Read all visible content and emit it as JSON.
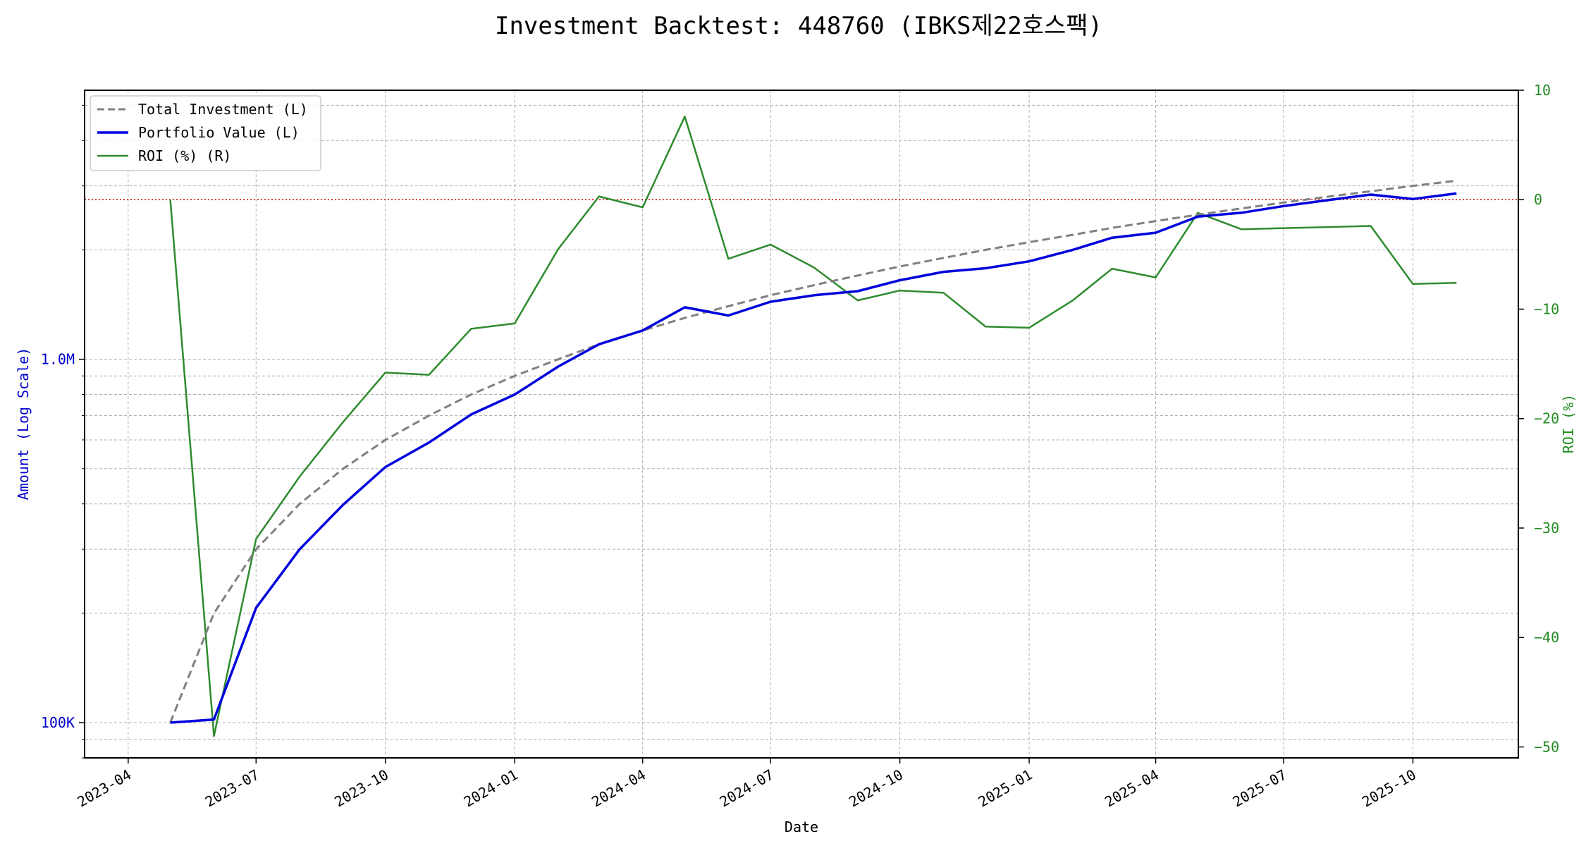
{
  "chart_data": {
    "type": "line",
    "title": "Investment Backtest: 448760 (IBKS제22호스팩)",
    "xlabel": "Date",
    "ylabel_left": "Amount (Log Scale)",
    "ylabel_right": "ROI (%)",
    "left_axis": {
      "scale": "log",
      "range": [
        80000,
        5500000
      ],
      "tick_values": [
        100000,
        1000000
      ],
      "tick_labels": [
        "100K",
        "1.0M"
      ]
    },
    "right_axis": {
      "range": [
        -51,
        10
      ],
      "tick_values": [
        10,
        0,
        -10,
        -20,
        -30,
        -40,
        -50
      ],
      "tick_labels": [
        "10",
        "0",
        "−10",
        "−20",
        "−30",
        "−40",
        "−50"
      ]
    },
    "x_range": [
      "2023-03-01",
      "2025-12-15"
    ],
    "x_ticks": [
      "2023-04-01",
      "2023-07-01",
      "2023-10-01",
      "2024-01-01",
      "2024-04-01",
      "2024-07-01",
      "2024-10-01",
      "2025-01-01",
      "2025-04-01",
      "2025-07-01",
      "2025-10-01"
    ],
    "x_tick_labels": [
      "2023-04",
      "2023-07",
      "2023-10",
      "2024-01",
      "2024-04",
      "2024-07",
      "2024-10",
      "2025-01",
      "2025-04",
      "2025-07",
      "2025-10"
    ],
    "dates": [
      "2023-05-01",
      "2023-06-01",
      "2023-07-01",
      "2023-08-01",
      "2023-09-01",
      "2023-10-01",
      "2023-11-01",
      "2023-12-01",
      "2024-01-01",
      "2024-02-01",
      "2024-03-01",
      "2024-04-01",
      "2024-05-01",
      "2024-06-01",
      "2024-07-01",
      "2024-08-01",
      "2024-09-01",
      "2024-10-01",
      "2024-11-01",
      "2024-12-01",
      "2025-01-01",
      "2025-02-01",
      "2025-03-01",
      "2025-04-01",
      "2025-05-01",
      "2025-06-01",
      "2025-07-01",
      "2025-08-01",
      "2025-09-01",
      "2025-10-01",
      "2025-11-01"
    ],
    "series": [
      {
        "name": "Total Investment (L)",
        "axis": "left",
        "color": "#808080",
        "style": "dashed",
        "values": [
          100000,
          200000,
          300000,
          400000,
          500000,
          600000,
          700000,
          800000,
          900000,
          1000000,
          1100000,
          1200000,
          1300000,
          1400000,
          1500000,
          1600000,
          1700000,
          1800000,
          1900000,
          2000000,
          2100000,
          2200000,
          2300000,
          2400000,
          2500000,
          2600000,
          2700000,
          2800000,
          2900000,
          3000000,
          3100000
        ]
      },
      {
        "name": "Portfolio Value (L)",
        "axis": "left",
        "color": "#0000dd",
        "style": "solid",
        "values": [
          100000,
          102000,
          207000,
          300000,
          398000,
          505000,
          590000,
          705000,
          800000,
          955000,
          1100000,
          1200000,
          1390000,
          1320000,
          1440000,
          1500000,
          1540000,
          1650000,
          1740000,
          1780000,
          1860000,
          2000000,
          2160000,
          2230000,
          2470000,
          2530000,
          2640000,
          2740000,
          2840000,
          2760000,
          2860000
        ]
      },
      {
        "name": "ROI (%) (R)",
        "axis": "right",
        "color": "#2e8b2e",
        "style": "solid",
        "values": [
          0,
          -49,
          -31,
          -25.3,
          -20.3,
          -15.8,
          -16,
          -11.8,
          -11.3,
          -4.5,
          0.3,
          -0.7,
          7.6,
          -5.4,
          -4.1,
          -6.2,
          -9.2,
          -8.3,
          -8.5,
          -11.6,
          -11.7,
          -9.2,
          -6.3,
          -7.1,
          -1.2,
          -2.7,
          -2.6,
          -2.5,
          -2.4,
          -7.7,
          -7.6
        ]
      }
    ],
    "reference_line": {
      "axis": "right",
      "value": 0,
      "color": "#cc0000",
      "style": "dotted"
    },
    "grid": true,
    "legend_position": "top-left"
  }
}
